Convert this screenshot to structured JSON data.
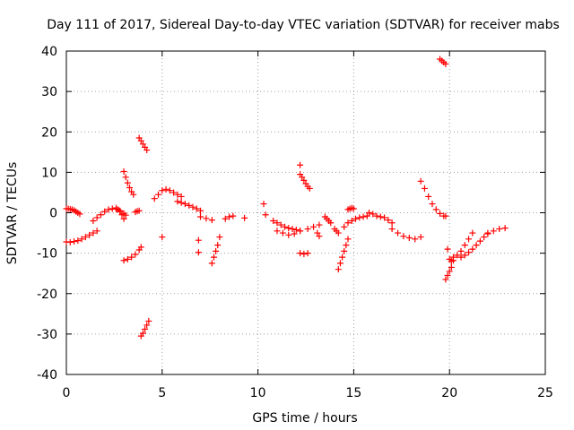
{
  "chart_data": {
    "type": "scatter",
    "title": "Day 111 of 2017, Sidereal Day-to-day VTEC variation (SDTVAR) for receiver mabs",
    "xlabel": "GPS time / hours",
    "ylabel": "SDTVAR / TECUs",
    "xlim": [
      0,
      25
    ],
    "ylim": [
      -40,
      40
    ],
    "xticks": [
      "0",
      "5",
      "10",
      "15",
      "20",
      "25"
    ],
    "yticks": [
      "-40",
      "-30",
      "-20",
      "-10",
      "0",
      "10",
      "20",
      "30",
      "40"
    ],
    "grid": true,
    "marker": "plus",
    "color": "#ff0000",
    "series": [
      {
        "name": "s01",
        "x": [
          0.0,
          0.1,
          0.2,
          0.3,
          0.4,
          0.5,
          0.6,
          0.7
        ],
        "y": [
          1.0,
          1.0,
          0.9,
          0.8,
          0.6,
          0.3,
          0.0,
          -0.3
        ]
      },
      {
        "name": "s02",
        "x": [
          0.0,
          0.2,
          0.4,
          0.6,
          0.8,
          1.0,
          1.2,
          1.4,
          1.6
        ],
        "y": [
          -7.2,
          -7.3,
          -7.1,
          -6.9,
          -6.5,
          -6.0,
          -5.5,
          -5.0,
          -4.5
        ]
      },
      {
        "name": "s03",
        "x": [
          1.4,
          1.6,
          1.8,
          2.0,
          2.2,
          2.4,
          2.6,
          2.8,
          3.0,
          3.1
        ],
        "y": [
          -2.0,
          -1.2,
          -0.5,
          0.3,
          0.8,
          1.0,
          0.9,
          0.5,
          -0.2,
          -0.6
        ]
      },
      {
        "name": "s04",
        "x": [
          2.6,
          2.7,
          2.8,
          2.9,
          3.0
        ],
        "y": [
          1.2,
          0.8,
          0.3,
          -0.5,
          -1.5
        ]
      },
      {
        "name": "s05",
        "x": [
          3.0,
          3.1,
          3.2,
          3.3,
          3.4,
          3.5
        ],
        "y": [
          10.2,
          8.8,
          7.4,
          6.2,
          5.2,
          4.5
        ]
      },
      {
        "name": "s06",
        "x": [
          3.0,
          3.2,
          3.4,
          3.6,
          3.8,
          3.9
        ],
        "y": [
          -11.8,
          -11.5,
          -11.0,
          -10.3,
          -9.2,
          -8.5
        ]
      },
      {
        "name": "s07",
        "x": [
          3.6,
          3.7,
          3.8
        ],
        "y": [
          0.2,
          0.4,
          0.5
        ]
      },
      {
        "name": "s08",
        "x": [
          3.8,
          3.9,
          4.0,
          4.1,
          4.2
        ],
        "y": [
          18.5,
          17.8,
          17.0,
          16.2,
          15.5
        ]
      },
      {
        "name": "s09",
        "x": [
          3.9,
          4.0,
          4.1,
          4.2,
          4.3
        ],
        "y": [
          -30.5,
          -29.8,
          -28.8,
          -27.8,
          -26.8
        ]
      },
      {
        "name": "s10",
        "x": [
          4.6,
          4.8,
          5.0,
          5.2,
          5.4,
          5.6,
          5.8,
          6.0
        ],
        "y": [
          3.5,
          4.5,
          5.5,
          5.8,
          5.5,
          5.0,
          4.5,
          4.0
        ]
      },
      {
        "name": "s11",
        "x": [
          5.0
        ],
        "y": [
          -6.0
        ]
      },
      {
        "name": "s12",
        "x": [
          5.8,
          6.0,
          6.2,
          6.4,
          6.6,
          6.8,
          7.0
        ],
        "y": [
          2.8,
          2.5,
          2.2,
          1.8,
          1.4,
          1.0,
          0.5
        ]
      },
      {
        "name": "s13",
        "x": [
          7.0,
          7.3,
          7.6
        ],
        "y": [
          -1.0,
          -1.4,
          -1.8
        ]
      },
      {
        "name": "s14",
        "x": [
          6.9
        ],
        "y": [
          -6.8
        ]
      },
      {
        "name": "s15",
        "x": [
          6.9
        ],
        "y": [
          -9.8
        ]
      },
      {
        "name": "s16",
        "x": [
          7.6,
          7.7,
          7.8,
          7.9,
          8.0
        ],
        "y": [
          -12.5,
          -11.0,
          -9.5,
          -8.0,
          -6.0
        ]
      },
      {
        "name": "s17",
        "x": [
          8.3,
          8.5,
          8.7
        ],
        "y": [
          -1.5,
          -1.0,
          -0.8
        ]
      },
      {
        "name": "s18",
        "x": [
          9.3
        ],
        "y": [
          -1.3
        ]
      },
      {
        "name": "s19",
        "x": [
          10.3
        ],
        "y": [
          2.2
        ]
      },
      {
        "name": "s20",
        "x": [
          10.4
        ],
        "y": [
          -0.5
        ]
      },
      {
        "name": "s21",
        "x": [
          10.8,
          11.0,
          11.2,
          11.4,
          11.6,
          11.8,
          12.0,
          12.2
        ],
        "y": [
          -2.0,
          -2.5,
          -3.0,
          -3.5,
          -3.8,
          -4.0,
          -4.2,
          -4.5
        ]
      },
      {
        "name": "s22",
        "x": [
          11.0,
          11.3,
          11.6,
          11.9,
          12.2
        ],
        "y": [
          -4.5,
          -5.0,
          -5.5,
          -5.2,
          -4.5
        ]
      },
      {
        "name": "s23",
        "x": [
          12.2
        ],
        "y": [
          11.8
        ]
      },
      {
        "name": "s24",
        "x": [
          12.2,
          12.3,
          12.4,
          12.5,
          12.6,
          12.7
        ],
        "y": [
          9.5,
          8.8,
          8.0,
          7.2,
          6.5,
          6.0
        ]
      },
      {
        "name": "s25",
        "x": [
          12.2,
          12.4,
          12.6
        ],
        "y": [
          -10.0,
          -10.2,
          -10.0
        ]
      },
      {
        "name": "s26",
        "x": [
          12.6,
          12.9,
          13.2
        ],
        "y": [
          -4.0,
          -3.5,
          -3.0
        ]
      },
      {
        "name": "s27",
        "x": [
          13.1,
          13.2
        ],
        "y": [
          -5.0,
          -5.8
        ]
      },
      {
        "name": "s28",
        "x": [
          13.5,
          13.6,
          13.7,
          13.8
        ],
        "y": [
          -1.0,
          -1.5,
          -2.0,
          -2.5
        ]
      },
      {
        "name": "s29",
        "x": [
          14.0,
          14.1,
          14.2
        ],
        "y": [
          -4.0,
          -4.5,
          -5.0
        ]
      },
      {
        "name": "s30",
        "x": [
          14.2,
          14.3,
          14.4,
          14.5,
          14.6,
          14.7
        ],
        "y": [
          -14.0,
          -12.5,
          -11.0,
          -9.5,
          -8.0,
          -6.5
        ]
      },
      {
        "name": "s31",
        "x": [
          14.5,
          14.7,
          14.9,
          15.1,
          15.3,
          15.5,
          15.7
        ],
        "y": [
          -3.5,
          -2.5,
          -2.0,
          -1.5,
          -1.2,
          -1.0,
          -0.8
        ]
      },
      {
        "name": "s32",
        "x": [
          14.7,
          14.8,
          14.9,
          15.0
        ],
        "y": [
          0.8,
          1.0,
          1.2,
          1.0
        ]
      },
      {
        "name": "s33",
        "x": [
          15.8,
          16.0,
          16.2,
          16.4,
          16.6,
          16.8,
          17.0
        ],
        "y": [
          0.0,
          -0.3,
          -0.8,
          -1.0,
          -1.2,
          -1.8,
          -2.5
        ]
      },
      {
        "name": "s34",
        "x": [
          17.0,
          17.3,
          17.6,
          17.9,
          18.2,
          18.5
        ],
        "y": [
          -4.0,
          -5.0,
          -5.8,
          -6.2,
          -6.5,
          -6.0
        ]
      },
      {
        "name": "s35",
        "x": [
          18.5,
          18.7,
          18.9,
          19.1,
          19.3,
          19.5,
          19.7
        ],
        "y": [
          7.8,
          6.0,
          4.0,
          2.2,
          0.8,
          -0.2,
          -0.8
        ]
      },
      {
        "name": "s36",
        "x": [
          19.5,
          19.6,
          19.7,
          19.8
        ],
        "y": [
          38.0,
          37.6,
          37.2,
          36.8
        ]
      },
      {
        "name": "s37",
        "x": [
          19.8
        ],
        "y": [
          -0.8
        ]
      },
      {
        "name": "s38",
        "x": [
          19.8,
          19.9,
          20.0,
          20.1
        ],
        "y": [
          -16.5,
          -15.5,
          -14.5,
          -13.5
        ]
      },
      {
        "name": "s39",
        "x": [
          19.9,
          20.0,
          20.1,
          20.2
        ],
        "y": [
          -9.0,
          -11.5,
          -12.0,
          -11.8
        ]
      },
      {
        "name": "s40",
        "x": [
          20.2,
          20.4,
          20.6,
          20.8,
          21.0,
          21.2
        ],
        "y": [
          -11.0,
          -10.5,
          -9.5,
          -8.0,
          -6.5,
          -5.0
        ]
      },
      {
        "name": "s41",
        "x": [
          20.6,
          20.8,
          21.0,
          21.2,
          21.4,
          21.6,
          21.8,
          22.0
        ],
        "y": [
          -11.0,
          -10.5,
          -9.8,
          -9.0,
          -8.0,
          -7.0,
          -6.0,
          -5.2
        ]
      },
      {
        "name": "s42",
        "x": [
          22.0,
          22.3,
          22.6,
          22.9
        ],
        "y": [
          -5.0,
          -4.5,
          -4.0,
          -3.8
        ]
      }
    ]
  }
}
